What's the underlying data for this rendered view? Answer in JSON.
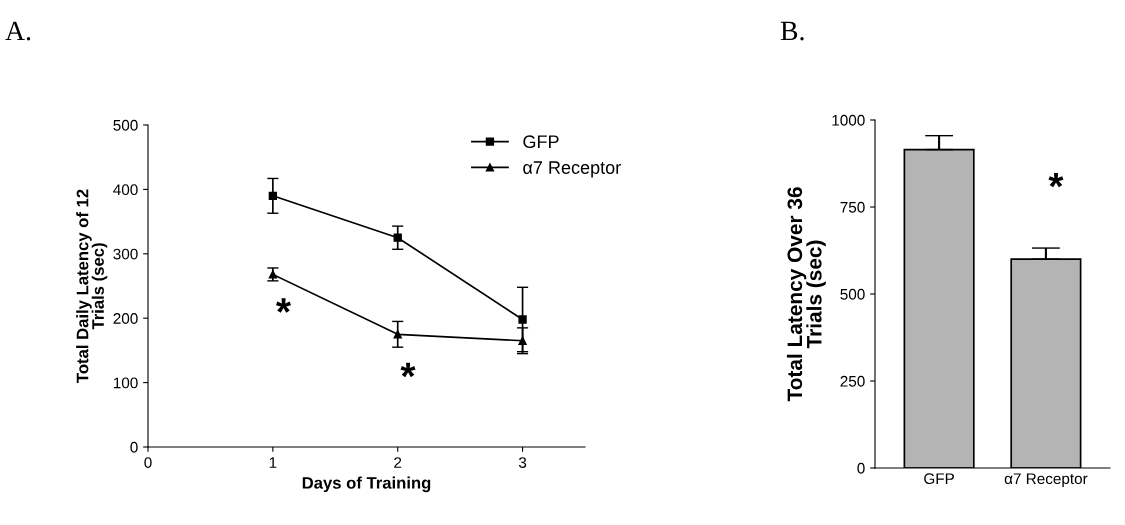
{
  "chart_data": [
    {
      "type": "line",
      "title": "A.",
      "xlabel": "Days of Training",
      "ylabel": "Total Daily Latency of 12\nTrials (sec)",
      "x": [
        1,
        2,
        3
      ],
      "series": [
        {
          "name": "GFP",
          "color": "#000000",
          "marker": "square",
          "values": [
            390,
            325,
            198
          ],
          "errors": [
            27,
            18,
            50
          ]
        },
        {
          "name": "α7 Receptor",
          "color": "#000000",
          "marker": "triangle",
          "values": [
            268,
            175,
            165
          ],
          "errors": [
            10,
            20,
            20
          ]
        }
      ],
      "xlim": [
        0,
        3.5
      ],
      "xticks": [
        0,
        1,
        2,
        3
      ],
      "ylim": [
        0,
        500
      ],
      "yticks": [
        0,
        100,
        200,
        300,
        400,
        500
      ],
      "legend": "top right",
      "grid": false,
      "line_style": "solid",
      "annotations": [
        "*",
        "*"
      ]
    },
    {
      "type": "bar",
      "title": "B.",
      "ylabel": "Total Latency Over 36\nTrials (sec)",
      "categories": [
        "GFP",
        "α7 Receptor"
      ],
      "values": [
        915,
        600
      ],
      "errors": [
        [
          915,
          955
        ],
        [
          600,
          632
        ]
      ],
      "color": "#b4b4b4",
      "ylim": [
        0,
        1000
      ],
      "yticks": [
        0,
        250,
        500,
        750,
        1000
      ],
      "grid": false,
      "annotations": [
        "*"
      ]
    }
  ]
}
